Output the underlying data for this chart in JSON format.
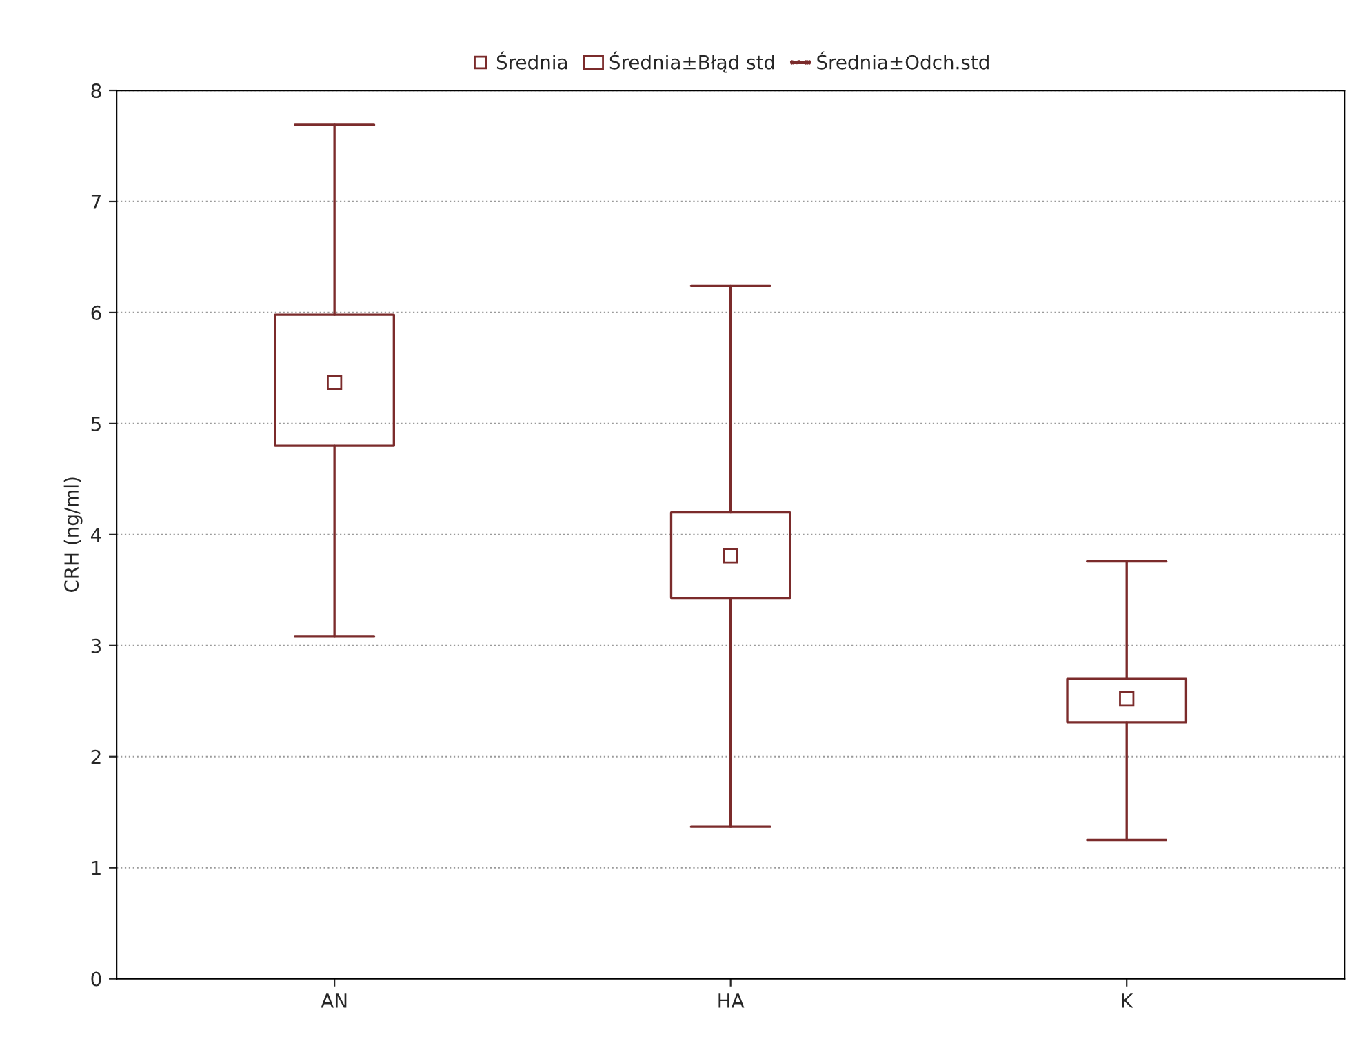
{
  "chart_data": {
    "type": "box",
    "ylabel": "CRH (ng/ml)",
    "categories": [
      "AN",
      "HA",
      "K"
    ],
    "boxes": [
      {
        "low": 3.08,
        "q1": 4.8,
        "q3": 5.98,
        "high": 7.69,
        "mean": 5.37
      },
      {
        "low": 1.37,
        "q1": 3.43,
        "q3": 4.2,
        "high": 6.24,
        "mean": 3.81
      },
      {
        "low": 1.25,
        "q1": 2.31,
        "q3": 2.7,
        "high": 3.76,
        "mean": 2.52
      }
    ],
    "color": "#7b2b2b",
    "ylim": [
      0,
      8
    ],
    "yticks": [
      0,
      1,
      2,
      3,
      4,
      5,
      6,
      7,
      8
    ],
    "grid": "y",
    "marker": "square",
    "annotations": [
      "Średnia",
      "Średnia±Błąd std",
      "Średnia±Odch.std"
    ]
  }
}
